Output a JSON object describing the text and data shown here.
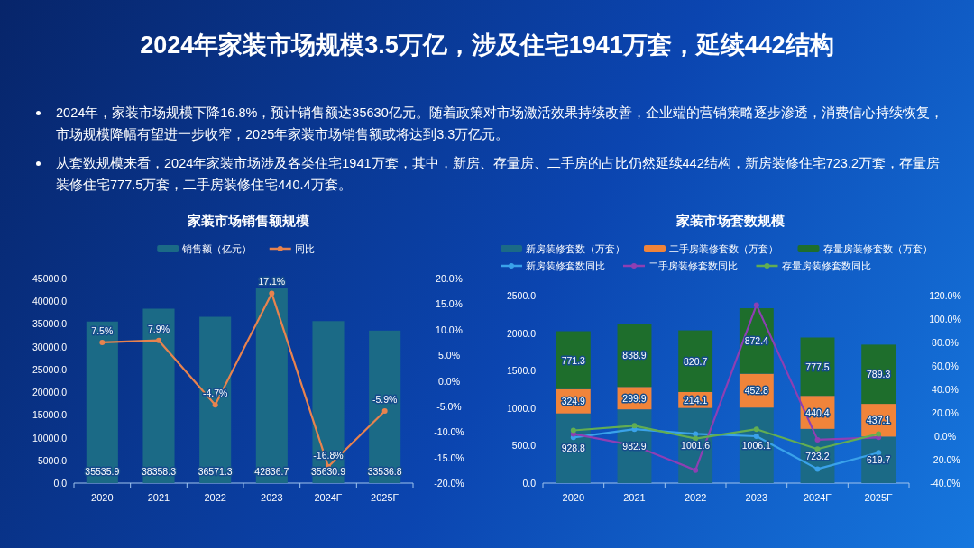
{
  "chart_data": [
    {
      "type": "other",
      "title": "2024年家装市场规模3.5万亿，涉及住宅1941万套，延续442结构",
      "annotations": [
        "2024年，家装市场规模下降16.8%，预计销售额达35630亿元。随着政策对市场激活效果持续改善，企业端的营销策略逐步渗透，消费信心持续恢复，市场规模降幅有望进一步收窄，2025年家装市场销售额或将达到3.3万亿元。",
        "从套数规模来看，2024年家装市场涉及各类住宅1941万套，其中，新房、存量房、二手房的占比仍然延续442结构，新房装修住宅723.2万套，存量房装修住宅777.5万套，二手房装修住宅440.4万套。"
      ]
    },
    {
      "type": "bar",
      "title": "家装市场销售额规模",
      "categories": [
        "2020",
        "2021",
        "2022",
        "2023",
        "2024F",
        "2025F"
      ],
      "legend": "top",
      "marker": "circle",
      "ylim": [
        0,
        45000
      ],
      "yticks": [
        {
          "value": 0,
          "label": "0.0"
        },
        {
          "value": 5000,
          "label": "5000.0"
        },
        {
          "value": 10000,
          "label": "10000.0"
        },
        {
          "value": 15000,
          "label": "15000.0"
        },
        {
          "value": 20000,
          "label": "20000.0"
        },
        {
          "value": 25000,
          "label": "25000.0"
        },
        {
          "value": 30000,
          "label": "30000.0"
        },
        {
          "value": 35000,
          "label": "35000.0"
        },
        {
          "value": 40000,
          "label": "40000.0"
        },
        {
          "value": 45000,
          "label": "45000.0"
        }
      ],
      "y2lim": [
        -20,
        20
      ],
      "y2ticks": [
        {
          "value": -20,
          "label": "-20.0%"
        },
        {
          "value": -15,
          "label": "-15.0%"
        },
        {
          "value": -10,
          "label": "-10.0%"
        },
        {
          "value": -5,
          "label": "-5.0%"
        },
        {
          "value": 0,
          "label": "0.0%"
        },
        {
          "value": 5,
          "label": "5.0%"
        },
        {
          "value": 10,
          "label": "10.0%"
        },
        {
          "value": 15,
          "label": "15.0%"
        },
        {
          "value": 20,
          "label": "20.0%"
        }
      ],
      "series": [
        {
          "name": "销售额（亿元）",
          "color": "#1b6a86",
          "values": [
            35535.9,
            38358.3,
            36571.3,
            42836.7,
            35630.9,
            33536.8
          ],
          "value_labels": [
            "35535.9",
            "38358.3",
            "36571.3",
            "42836.7",
            "35630.9",
            "33536.8"
          ]
        },
        {
          "name": "同比",
          "type": "line",
          "axis": "y2",
          "color": "#e8834e",
          "values": [
            7.5,
            7.9,
            -4.7,
            17.1,
            -16.8,
            -5.9
          ],
          "value_labels": [
            "7.5%",
            "7.9%",
            "-4.7%",
            "17.1%",
            "-16.8%",
            "-5.9%"
          ]
        }
      ]
    },
    {
      "type": "bar",
      "title": "家装市场套数规模",
      "categories": [
        "2020",
        "2021",
        "2022",
        "2023",
        "2024F",
        "2025F"
      ],
      "legend": "top",
      "stacked": true,
      "marker": "circle",
      "ylim": [
        0,
        2500
      ],
      "yticks": [
        {
          "value": 0,
          "label": "0.0"
        },
        {
          "value": 500,
          "label": "500.0"
        },
        {
          "value": 1000,
          "label": "1000.0"
        },
        {
          "value": 1500,
          "label": "1500.0"
        },
        {
          "value": 2000,
          "label": "2000.0"
        },
        {
          "value": 2500,
          "label": "2500.0"
        }
      ],
      "y2lim": [
        -40,
        120
      ],
      "y2ticks": [
        {
          "value": -40,
          "label": "-40.0%"
        },
        {
          "value": -20,
          "label": "-20.0%"
        },
        {
          "value": 0,
          "label": "0.0%"
        },
        {
          "value": 20,
          "label": "20.0%"
        },
        {
          "value": 40,
          "label": "40.0%"
        },
        {
          "value": 60,
          "label": "60.0%"
        },
        {
          "value": 80,
          "label": "80.0%"
        },
        {
          "value": 100,
          "label": "100.0%"
        },
        {
          "value": 120,
          "label": "120.0%"
        }
      ],
      "series": [
        {
          "name": "新房装修套数（万套）",
          "color": "#1b6a86",
          "values": [
            928.8,
            982.9,
            1001.6,
            1006.1,
            723.2,
            619.7
          ],
          "value_labels": [
            "928.8",
            "982.9",
            "1001.6",
            "1006.1",
            "723.2",
            "619.7"
          ]
        },
        {
          "name": "二手房装修套数（万套）",
          "color": "#f0843a",
          "values": [
            324.9,
            299.9,
            214.1,
            452.8,
            440.4,
            437.1
          ],
          "value_labels": [
            "324.9",
            "299.9",
            "214.1",
            "452.8",
            "440.4",
            "437.1"
          ]
        },
        {
          "name": "存量房装修套数（万套）",
          "color": "#1e6e2c",
          "values": [
            771.3,
            838.9,
            820.7,
            872.4,
            777.5,
            789.3
          ],
          "value_labels": [
            "771.3",
            "838.9",
            "820.7",
            "872.4",
            "777.5",
            "789.3"
          ]
        },
        {
          "name": "新房装修套数同比",
          "type": "line",
          "axis": "y2",
          "color": "#3aa2ea",
          "values": [
            -1,
            6,
            2,
            0,
            -28,
            -14
          ]
        },
        {
          "name": "二手房装修套数同比",
          "type": "line",
          "axis": "y2",
          "color": "#8e3fb3",
          "values": [
            2,
            -8,
            -29,
            112,
            -3,
            -1
          ]
        },
        {
          "name": "存量房装修套数同比",
          "type": "line",
          "axis": "y2",
          "color": "#62ad52",
          "values": [
            5,
            9,
            -2,
            6,
            -11,
            2
          ]
        }
      ]
    }
  ]
}
